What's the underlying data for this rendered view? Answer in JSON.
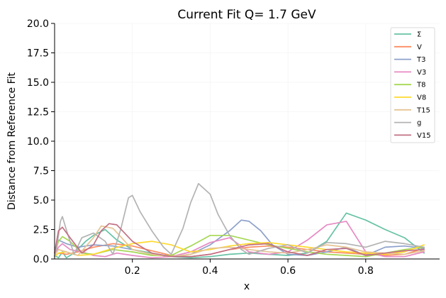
{
  "chart_data": {
    "type": "line",
    "title": "Current Fit Q= 1.7 GeV",
    "xlabel": "x",
    "ylabel": "Distance from Reference Fit",
    "xlim": [
      0.0,
      0.99
    ],
    "ylim": [
      0,
      20
    ],
    "xticks": [
      0.2,
      0.4,
      0.6,
      0.8
    ],
    "xtick_labels": [
      "0.2",
      "0.4",
      "0.6",
      "0.8"
    ],
    "yticks": [
      0,
      2.5,
      5,
      7.5,
      10,
      12.5,
      15,
      17.5,
      20
    ],
    "ytick_labels": [
      "0.0",
      "2.5",
      "5.0",
      "7.5",
      "10.0",
      "12.5",
      "15.0",
      "17.5",
      "20.0"
    ],
    "grid": true,
    "legend_position": "top-right",
    "series": [
      {
        "name": "Σ",
        "color": "#66c2a5",
        "x": [
          0.0,
          0.01,
          0.02,
          0.03,
          0.05,
          0.08,
          0.1,
          0.13,
          0.16,
          0.2,
          0.25,
          0.3,
          0.35,
          0.4,
          0.45,
          0.5,
          0.55,
          0.6,
          0.65,
          0.7,
          0.75,
          0.8,
          0.85,
          0.9,
          0.95
        ],
        "y": [
          0.3,
          0.1,
          0.6,
          0.1,
          0.5,
          1.5,
          2.0,
          2.5,
          1.6,
          0.8,
          0.5,
          0.2,
          0.1,
          0.2,
          0.4,
          0.5,
          0.4,
          0.3,
          0.5,
          1.5,
          3.9,
          3.3,
          2.5,
          1.8,
          0.5
        ]
      },
      {
        "name": "V",
        "color": "#fc8d62",
        "x": [
          0.0,
          0.01,
          0.03,
          0.06,
          0.1,
          0.15,
          0.2,
          0.25,
          0.3,
          0.35,
          0.4,
          0.45,
          0.5,
          0.55,
          0.6,
          0.65,
          0.7,
          0.75,
          0.8,
          0.85,
          0.9,
          0.95
        ],
        "y": [
          0.2,
          0.5,
          0.4,
          0.6,
          1.0,
          1.3,
          1.1,
          0.7,
          0.3,
          0.2,
          0.4,
          0.8,
          1.0,
          1.1,
          1.0,
          0.8,
          0.6,
          0.5,
          0.4,
          0.3,
          0.4,
          0.9
        ]
      },
      {
        "name": "T3",
        "color": "#8da0cb",
        "x": [
          0.0,
          0.01,
          0.03,
          0.06,
          0.1,
          0.15,
          0.2,
          0.25,
          0.3,
          0.35,
          0.4,
          0.45,
          0.48,
          0.5,
          0.53,
          0.56,
          0.6,
          0.65,
          0.7,
          0.75,
          0.8,
          0.85,
          0.9,
          0.95
        ],
        "y": [
          0.2,
          1.6,
          1.3,
          1.0,
          1.2,
          1.1,
          0.8,
          0.4,
          0.2,
          0.4,
          1.2,
          2.4,
          3.3,
          3.2,
          2.4,
          1.2,
          0.4,
          0.3,
          0.6,
          1.0,
          0.3,
          1.0,
          1.1,
          0.9
        ]
      },
      {
        "name": "V3",
        "color": "#e78ac3",
        "x": [
          0.0,
          0.01,
          0.02,
          0.04,
          0.07,
          0.1,
          0.13,
          0.16,
          0.2,
          0.25,
          0.3,
          0.35,
          0.4,
          0.45,
          0.5,
          0.55,
          0.6,
          0.65,
          0.7,
          0.75,
          0.8,
          0.85,
          0.9,
          0.95
        ],
        "y": [
          0.3,
          1.0,
          1.3,
          0.8,
          0.6,
          0.3,
          0.2,
          0.5,
          0.3,
          0.1,
          0.2,
          0.6,
          1.4,
          1.8,
          0.6,
          0.4,
          0.6,
          1.6,
          2.9,
          3.2,
          0.6,
          0.2,
          0.2,
          0.6
        ]
      },
      {
        "name": "T8",
        "color": "#a6d854",
        "x": [
          0.0,
          0.01,
          0.02,
          0.04,
          0.07,
          0.1,
          0.15,
          0.2,
          0.25,
          0.3,
          0.35,
          0.4,
          0.45,
          0.5,
          0.55,
          0.6,
          0.65,
          0.7,
          0.75,
          0.8,
          0.85,
          0.9,
          0.95
        ],
        "y": [
          0.5,
          1.5,
          1.9,
          1.5,
          0.5,
          0.4,
          0.8,
          0.6,
          0.3,
          0.3,
          1.1,
          2.0,
          2.0,
          1.6,
          1.2,
          0.9,
          0.6,
          0.4,
          0.3,
          0.2,
          0.5,
          0.8,
          1.0
        ]
      },
      {
        "name": "V8",
        "color": "#ffd92f",
        "x": [
          0.0,
          0.01,
          0.03,
          0.06,
          0.1,
          0.15,
          0.2,
          0.25,
          0.3,
          0.35,
          0.4,
          0.45,
          0.5,
          0.55,
          0.6,
          0.65,
          0.7,
          0.75,
          0.8,
          0.85,
          0.9,
          0.95
        ],
        "y": [
          0.2,
          0.5,
          0.6,
          0.3,
          0.4,
          0.9,
          1.3,
          1.5,
          1.2,
          0.6,
          0.8,
          1.1,
          1.3,
          1.4,
          1.2,
          1.0,
          0.8,
          0.6,
          0.5,
          0.4,
          0.6,
          1.2
        ]
      },
      {
        "name": "T15",
        "color": "#e5c494",
        "x": [
          0.0,
          0.01,
          0.03,
          0.06,
          0.1,
          0.12,
          0.15,
          0.2,
          0.25,
          0.3,
          0.35,
          0.4,
          0.45,
          0.5,
          0.55,
          0.6,
          0.65,
          0.7,
          0.75,
          0.8,
          0.85,
          0.9,
          0.95
        ],
        "y": [
          0.3,
          0.8,
          0.6,
          0.3,
          1.8,
          2.8,
          2.6,
          0.8,
          0.4,
          0.2,
          0.4,
          0.9,
          1.0,
          0.8,
          0.6,
          0.5,
          0.8,
          1.2,
          1.0,
          0.6,
          0.5,
          0.4,
          0.7
        ]
      },
      {
        "name": "g",
        "color": "#b3b3b3",
        "x": [
          0.0,
          0.01,
          0.015,
          0.02,
          0.03,
          0.05,
          0.07,
          0.1,
          0.13,
          0.15,
          0.17,
          0.19,
          0.2,
          0.22,
          0.25,
          0.28,
          0.3,
          0.33,
          0.35,
          0.37,
          0.4,
          0.42,
          0.45,
          0.48,
          0.5,
          0.55,
          0.6,
          0.65,
          0.7,
          0.75,
          0.8,
          0.85,
          0.9,
          0.95
        ],
        "y": [
          0.2,
          2.0,
          3.2,
          3.6,
          2.5,
          0.4,
          1.8,
          2.2,
          1.5,
          0.4,
          2.5,
          5.2,
          5.4,
          4.0,
          2.4,
          1.0,
          0.4,
          2.6,
          4.8,
          6.4,
          5.5,
          3.8,
          2.0,
          0.8,
          0.4,
          0.9,
          1.2,
          0.5,
          1.4,
          1.3,
          1.0,
          1.5,
          1.3,
          1.0
        ]
      },
      {
        "name": "V15",
        "color": "#c27084",
        "x": [
          0.0,
          0.01,
          0.02,
          0.04,
          0.07,
          0.1,
          0.12,
          0.14,
          0.16,
          0.2,
          0.25,
          0.3,
          0.35,
          0.4,
          0.45,
          0.5,
          0.55,
          0.6,
          0.65,
          0.7,
          0.75,
          0.8,
          0.85,
          0.9,
          0.95
        ],
        "y": [
          0.5,
          2.4,
          2.7,
          1.8,
          0.5,
          1.2,
          2.4,
          3.0,
          2.9,
          1.5,
          0.5,
          0.2,
          0.2,
          0.4,
          0.8,
          1.2,
          1.3,
          0.6,
          0.3,
          0.8,
          0.9,
          0.3,
          0.5,
          0.7,
          0.8
        ]
      }
    ]
  }
}
